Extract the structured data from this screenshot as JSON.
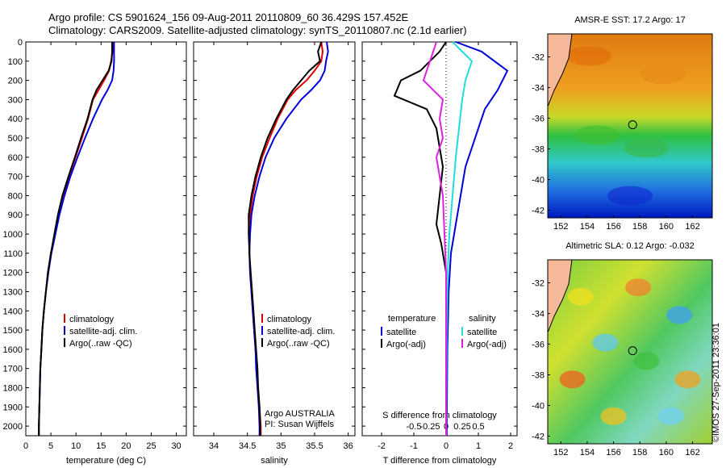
{
  "header": {
    "line1": "Argo profile: CS 5901624_156 09-Aug-2011 20110809_60 36.429S 157.452E",
    "line2": "Climatology: CARS2009. Satellite-adjusted climatology: synTS_20110807.nc (2.1d earlier)"
  },
  "colors": {
    "climatology": "#e00000",
    "satellite": "#0000dd",
    "argo": "#000000",
    "sat_salinity": "#22dddd",
    "argo_salinity_adj": "#dd22dd",
    "land": "#f5b99a"
  },
  "chart_data": [
    {
      "type": "line",
      "panel": "temperature",
      "xlabel": "temperature (deg C)",
      "ylabel": "",
      "xlim": [
        0,
        32
      ],
      "ylim": [
        2050,
        0
      ],
      "xticks": [
        "0",
        "5",
        "10",
        "15",
        "20",
        "25",
        "30"
      ],
      "yticks": [
        "0",
        "100",
        "200",
        "300",
        "400",
        "500",
        "600",
        "700",
        "800",
        "900",
        "1000",
        "1100",
        "1200",
        "1300",
        "1400",
        "1500",
        "1600",
        "1700",
        "1800",
        "1900",
        "2000"
      ],
      "legend": [
        "climatology",
        "satellite-adj. clim.",
        "Argo(..raw -QC)"
      ],
      "legend_position": "lower-center",
      "series": [
        {
          "name": "climatology",
          "color": "#e00000",
          "points": [
            [
              17.3,
              0
            ],
            [
              17.3,
              50
            ],
            [
              17.0,
              100
            ],
            [
              16.6,
              150
            ],
            [
              15.6,
              200
            ],
            [
              14.5,
              250
            ],
            [
              13.4,
              300
            ],
            [
              12.4,
              400
            ],
            [
              11.2,
              500
            ],
            [
              9.9,
              600
            ],
            [
              8.6,
              700
            ],
            [
              7.5,
              800
            ],
            [
              6.5,
              900
            ],
            [
              5.8,
              1000
            ],
            [
              5.0,
              1100
            ],
            [
              4.4,
              1200
            ],
            [
              4.0,
              1300
            ],
            [
              3.6,
              1400
            ],
            [
              3.3,
              1500
            ],
            [
              3.1,
              1600
            ],
            [
              2.9,
              1700
            ],
            [
              2.8,
              1800
            ],
            [
              2.7,
              1900
            ],
            [
              2.6,
              2000
            ],
            [
              2.6,
              2050
            ]
          ]
        },
        {
          "name": "satellite-adj. clim.",
          "color": "#0000dd",
          "points": [
            [
              17.6,
              0
            ],
            [
              17.6,
              50
            ],
            [
              17.6,
              100
            ],
            [
              17.5,
              150
            ],
            [
              17.2,
              200
            ],
            [
              16.3,
              250
            ],
            [
              15.2,
              300
            ],
            [
              13.4,
              400
            ],
            [
              11.8,
              500
            ],
            [
              10.3,
              600
            ],
            [
              8.9,
              700
            ],
            [
              7.7,
              800
            ],
            [
              6.7,
              900
            ],
            [
              5.9,
              1000
            ],
            [
              5.1,
              1100
            ],
            [
              4.5,
              1200
            ],
            [
              4.0,
              1300
            ],
            [
              3.6,
              1400
            ],
            [
              3.3,
              1500
            ],
            [
              3.1,
              1600
            ],
            [
              2.9,
              1700
            ],
            [
              2.8,
              1800
            ],
            [
              2.7,
              1900
            ],
            [
              2.6,
              2000
            ],
            [
              2.6,
              2050
            ]
          ]
        },
        {
          "name": "Argo(..raw -QC)",
          "color": "#000000",
          "points": [
            [
              17.2,
              0
            ],
            [
              17.2,
              50
            ],
            [
              17.1,
              100
            ],
            [
              16.5,
              150
            ],
            [
              15.3,
              200
            ],
            [
              14.1,
              250
            ],
            [
              13.3,
              300
            ],
            [
              12.3,
              400
            ],
            [
              11.0,
              500
            ],
            [
              9.8,
              600
            ],
            [
              8.5,
              700
            ],
            [
              7.3,
              800
            ],
            [
              6.4,
              900
            ],
            [
              5.7,
              1000
            ],
            [
              5.0,
              1100
            ],
            [
              4.4,
              1200
            ],
            [
              4.0,
              1300
            ],
            [
              3.6,
              1400
            ],
            [
              3.3,
              1500
            ],
            [
              3.1,
              1600
            ],
            [
              2.9,
              1700
            ],
            [
              2.8,
              1800
            ],
            [
              2.7,
              1900
            ],
            [
              2.6,
              2000
            ],
            [
              2.6,
              2050
            ]
          ]
        }
      ]
    },
    {
      "type": "line",
      "panel": "salinity",
      "xlabel": "salinity",
      "ylabel": "",
      "xlim": [
        33.7,
        36.1
      ],
      "ylim": [
        2050,
        0
      ],
      "xticks": [
        "34",
        "34.5",
        "35",
        "35.5",
        "36"
      ],
      "legend": [
        "climatology",
        "satellite-adj. clim.",
        "Argo(..raw -QC)"
      ],
      "legend_position": "lower-center",
      "annotation": [
        "Argo AUSTRALIA",
        "PI: Susan Wijffels"
      ],
      "series": [
        {
          "name": "climatology",
          "color": "#e00000",
          "points": [
            [
              35.6,
              0
            ],
            [
              35.62,
              50
            ],
            [
              35.6,
              100
            ],
            [
              35.5,
              150
            ],
            [
              35.38,
              200
            ],
            [
              35.22,
              250
            ],
            [
              35.1,
              300
            ],
            [
              34.95,
              400
            ],
            [
              34.83,
              500
            ],
            [
              34.72,
              600
            ],
            [
              34.64,
              700
            ],
            [
              34.58,
              800
            ],
            [
              34.54,
              900
            ],
            [
              34.53,
              1000
            ],
            [
              34.53,
              1100
            ],
            [
              34.54,
              1200
            ],
            [
              34.56,
              1300
            ],
            [
              34.58,
              1400
            ],
            [
              34.6,
              1500
            ],
            [
              34.62,
              1600
            ],
            [
              34.64,
              1700
            ],
            [
              34.66,
              1800
            ],
            [
              34.68,
              1900
            ],
            [
              34.7,
              2000
            ],
            [
              34.7,
              2050
            ]
          ]
        },
        {
          "name": "satellite-adj. clim.",
          "color": "#0000dd",
          "points": [
            [
              35.68,
              0
            ],
            [
              35.7,
              50
            ],
            [
              35.67,
              100
            ],
            [
              35.65,
              150
            ],
            [
              35.58,
              200
            ],
            [
              35.45,
              250
            ],
            [
              35.3,
              300
            ],
            [
              35.08,
              400
            ],
            [
              34.9,
              500
            ],
            [
              34.77,
              600
            ],
            [
              34.68,
              700
            ],
            [
              34.61,
              800
            ],
            [
              34.56,
              900
            ],
            [
              34.54,
              1000
            ],
            [
              34.53,
              1100
            ],
            [
              34.54,
              1200
            ],
            [
              34.56,
              1300
            ],
            [
              34.58,
              1400
            ],
            [
              34.6,
              1500
            ],
            [
              34.62,
              1600
            ],
            [
              34.63,
              1700
            ],
            [
              34.65,
              1800
            ],
            [
              34.67,
              1900
            ],
            [
              34.68,
              2000
            ],
            [
              34.68,
              2050
            ]
          ]
        },
        {
          "name": "Argo(..raw -QC)",
          "color": "#000000",
          "points": [
            [
              35.6,
              0
            ],
            [
              35.55,
              50
            ],
            [
              35.58,
              100
            ],
            [
              35.42,
              150
            ],
            [
              35.3,
              200
            ],
            [
              35.18,
              250
            ],
            [
              35.08,
              300
            ],
            [
              34.93,
              400
            ],
            [
              34.8,
              500
            ],
            [
              34.7,
              600
            ],
            [
              34.62,
              700
            ],
            [
              34.56,
              800
            ],
            [
              34.52,
              900
            ],
            [
              34.52,
              1000
            ],
            [
              34.53,
              1100
            ],
            [
              34.55,
              1200
            ],
            [
              34.57,
              1300
            ],
            [
              34.59,
              1400
            ],
            [
              34.61,
              1500
            ],
            [
              34.63,
              1600
            ],
            [
              34.65,
              1700
            ],
            [
              34.66,
              1800
            ],
            [
              34.68,
              1900
            ],
            [
              34.69,
              2000
            ],
            [
              34.69,
              2050
            ]
          ]
        }
      ]
    },
    {
      "type": "line",
      "panel": "differences",
      "xlabel": "T difference from climatology",
      "xlabel_top": "S difference from climatology",
      "xlim": [
        -2.6,
        2.2
      ],
      "ylim": [
        2050,
        0
      ],
      "xticks": [
        "-2",
        "-1",
        "0",
        "1",
        "2"
      ],
      "xticks_top": [
        "-0.5",
        "-0.25",
        "0",
        "0.25",
        "0.5"
      ],
      "legend": {
        "temperature_heading": "temperature",
        "salinity_heading": "salinity",
        "temperature_items": [
          "satellite",
          "Argo(-adj)"
        ],
        "salinity_items": [
          "satellite",
          "Argo(-adj)"
        ]
      },
      "legend_position": "lower-center",
      "series": [
        {
          "name": "satellite",
          "quantity": "temperature",
          "color": "#0000dd",
          "points": [
            [
              0.3,
              0
            ],
            [
              1.1,
              50
            ],
            [
              1.9,
              150
            ],
            [
              1.6,
              250
            ],
            [
              1.2,
              350
            ],
            [
              1.0,
              450
            ],
            [
              0.8,
              550
            ],
            [
              0.6,
              650
            ],
            [
              0.45,
              800
            ],
            [
              0.3,
              950
            ],
            [
              0.15,
              1100
            ],
            [
              0.08,
              1300
            ],
            [
              0.04,
              1600
            ],
            [
              0.02,
              2000
            ],
            [
              0.02,
              2050
            ]
          ]
        },
        {
          "name": "Argo(-adj)",
          "quantity": "temperature",
          "color": "#000000",
          "points": [
            [
              0.0,
              0
            ],
            [
              -0.2,
              50
            ],
            [
              -0.5,
              100
            ],
            [
              -0.8,
              150
            ],
            [
              -1.4,
              200
            ],
            [
              -1.6,
              280
            ],
            [
              -0.6,
              350
            ],
            [
              -0.3,
              450
            ],
            [
              -0.2,
              550
            ],
            [
              -0.1,
              650
            ],
            [
              -0.2,
              800
            ],
            [
              -0.3,
              950
            ],
            [
              -0.15,
              1050
            ],
            [
              0.0,
              1200
            ],
            [
              0.0,
              2050
            ]
          ]
        },
        {
          "name": "satellite",
          "quantity": "salinity",
          "color": "#22dddd",
          "points": [
            [
              0.2,
              0
            ],
            [
              0.8,
              100
            ],
            [
              0.6,
              200
            ],
            [
              0.5,
              300
            ],
            [
              0.4,
              450
            ],
            [
              0.3,
              600
            ],
            [
              0.2,
              800
            ],
            [
              0.1,
              1000
            ],
            [
              0.05,
              1200
            ],
            [
              0.02,
              1500
            ],
            [
              0.0,
              2050
            ]
          ]
        },
        {
          "name": "Argo(-adj)",
          "quantity": "salinity",
          "color": "#dd22dd",
          "points": [
            [
              -0.3,
              0
            ],
            [
              -0.5,
              100
            ],
            [
              -0.7,
              200
            ],
            [
              -0.1,
              300
            ],
            [
              -0.2,
              400
            ],
            [
              -0.1,
              500
            ],
            [
              -0.3,
              600
            ],
            [
              -0.1,
              800
            ],
            [
              -0.05,
              1000
            ],
            [
              0.0,
              1200
            ],
            [
              0.0,
              2050
            ]
          ]
        }
      ]
    },
    {
      "type": "heatmap",
      "panel": "sst_map",
      "title": "AMSR-E SST: 17.2 Argo: 17",
      "xticks": [
        "152",
        "154",
        "156",
        "158",
        "160",
        "162"
      ],
      "yticks": [
        "-32",
        "-34",
        "-36",
        "-38",
        "-40",
        "-42"
      ],
      "xlim": [
        151,
        163.5
      ],
      "ylim": [
        -42.5,
        -30.5
      ],
      "float_position": [
        157.45,
        -36.43
      ]
    },
    {
      "type": "heatmap",
      "panel": "sla_map",
      "title": "Altimetric SLA: 0.12 Argo: -0.032",
      "xticks": [
        "152",
        "154",
        "156",
        "158",
        "160",
        "162"
      ],
      "yticks": [
        "-32",
        "-34",
        "-36",
        "-38",
        "-40",
        "-42"
      ],
      "xlim": [
        151,
        163.5
      ],
      "ylim": [
        -42.5,
        -30.5
      ],
      "float_position": [
        157.45,
        -36.43
      ]
    }
  ],
  "watermark": "©IMOS 27-Sep-2011 23:36:01"
}
